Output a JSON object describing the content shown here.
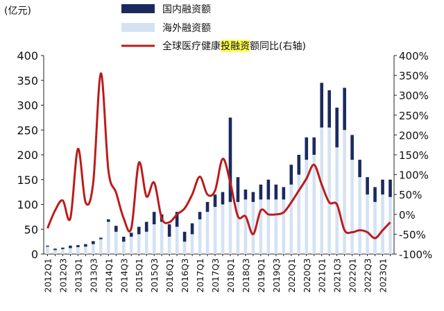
{
  "chart_data": {
    "type": "bar",
    "unit_label": "(亿元)",
    "categories": [
      "2012Q1",
      "2012Q2",
      "2012Q3",
      "2012Q4",
      "2013Q1",
      "2013Q2",
      "2013Q3",
      "2013Q4",
      "2014Q1",
      "2014Q2",
      "2014Q3",
      "2014Q4",
      "2015Q1",
      "2015Q2",
      "2015Q3",
      "2015Q4",
      "2016Q1",
      "2016Q2",
      "2016Q3",
      "2016Q4",
      "2017Q1",
      "2017Q2",
      "2017Q3",
      "2017Q4",
      "2018Q1",
      "2018Q2",
      "2018Q3",
      "2018Q4",
      "2019Q1",
      "2019Q2",
      "2019Q3",
      "2019Q4",
      "2020Q1",
      "2020Q2",
      "2020Q3",
      "2020Q4",
      "2021Q1",
      "2021Q2",
      "2021Q3",
      "2021Q4",
      "2022Q1",
      "2022Q2",
      "2022Q3",
      "2022Q4",
      "2023Q1",
      "2023Q2"
    ],
    "series": [
      {
        "name": "国内融资额",
        "kind": "bar-stacked-top",
        "color": "#1b2a5e",
        "values": [
          2,
          3,
          3,
          5,
          4,
          5,
          6,
          3,
          5,
          12,
          10,
          8,
          15,
          20,
          25,
          15,
          25,
          30,
          20,
          22,
          15,
          20,
          25,
          25,
          170,
          50,
          20,
          20,
          30,
          40,
          30,
          25,
          40,
          40,
          45,
          35,
          90,
          75,
          80,
          85,
          50,
          35,
          35,
          30,
          30,
          35
        ]
      },
      {
        "name": "海外融资额",
        "kind": "bar-stacked-base",
        "color": "#d4e2f2",
        "values": [
          15,
          8,
          10,
          12,
          14,
          15,
          20,
          30,
          65,
          45,
          25,
          35,
          40,
          45,
          60,
          65,
          35,
          55,
          25,
          40,
          70,
          85,
          95,
          100,
          105,
          105,
          110,
          105,
          110,
          110,
          110,
          110,
          140,
          160,
          190,
          200,
          255,
          255,
          215,
          250,
          190,
          155,
          120,
          105,
          120,
          115
        ]
      },
      {
        "name": "全球医疗健康投融资额同比(右轴)",
        "kind": "line",
        "color": "#bb1b1b",
        "axis": "right",
        "values": [
          -35,
          10,
          35,
          -10,
          165,
          30,
          80,
          355,
          110,
          55,
          -10,
          -35,
          130,
          45,
          80,
          -10,
          -20,
          0,
          15,
          50,
          95,
          50,
          60,
          140,
          80,
          -5,
          -5,
          -50,
          10,
          0,
          0,
          5,
          30,
          60,
          90,
          125,
          75,
          30,
          25,
          -40,
          -45,
          -40,
          -45,
          -60,
          -40,
          -20
        ]
      }
    ],
    "y_left": {
      "min": 0,
      "max": 400,
      "ticks": [
        "0",
        "50",
        "100",
        "150",
        "200",
        "250",
        "300",
        "350",
        "400"
      ]
    },
    "y_right": {
      "min": -100,
      "max": 400,
      "ticks": [
        "-100%",
        "-50%",
        "0%",
        "50%",
        "100%",
        "150%",
        "200%",
        "250%",
        "300%",
        "350%",
        "400%"
      ]
    },
    "x_tick_every": 2,
    "legend_placement": "top",
    "legend": [
      {
        "label": "国内融资额"
      },
      {
        "label": "海外融资额"
      },
      {
        "label": "全球医疗健康投融资额同比(右轴)",
        "highlight": "投融资",
        "highlight_color": "#ffff55"
      }
    ],
    "grid": false
  }
}
